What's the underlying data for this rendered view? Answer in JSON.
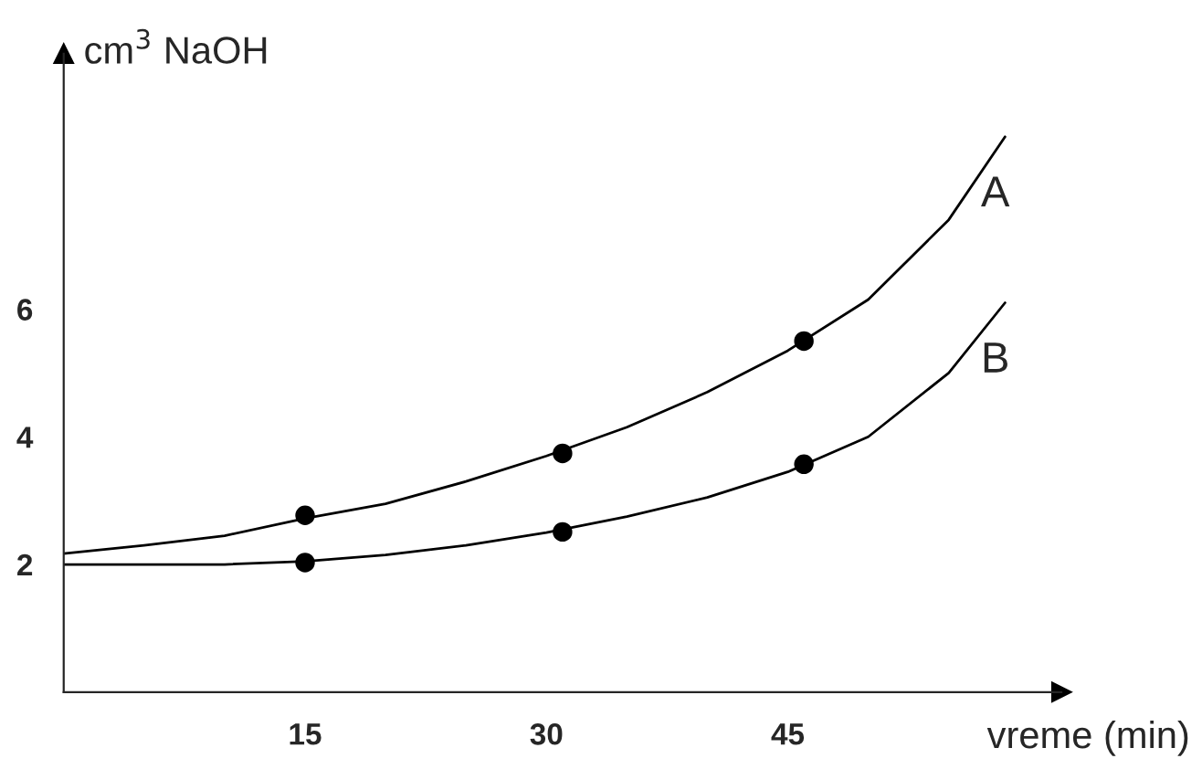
{
  "chart_data": {
    "type": "line",
    "ylabel": "cm$^{3}$ NaOH",
    "xlabel": "vreme (min)",
    "xlim": [
      0,
      62
    ],
    "ylim": [
      0,
      10
    ],
    "xticks": [
      15,
      30,
      45
    ],
    "yticks": [
      2,
      4,
      6
    ],
    "grid": false,
    "legend": false,
    "series": [
      {
        "name": "A",
        "color": "#000000",
        "marker": "none",
        "x": [
          0,
          5,
          10,
          15,
          20,
          25,
          30,
          35,
          40,
          45,
          50,
          55,
          58.5
        ],
        "values": [
          2.17,
          2.3,
          2.45,
          2.72,
          2.95,
          3.3,
          3.7,
          4.15,
          4.7,
          5.35,
          6.15,
          7.4,
          8.7
        ]
      },
      {
        "name": "B",
        "color": "#000000",
        "marker": "none",
        "x": [
          0,
          5,
          10,
          15,
          20,
          25,
          30,
          35,
          40,
          45,
          50,
          55,
          58.5
        ],
        "values": [
          2.0,
          2.0,
          2.0,
          2.05,
          2.15,
          2.3,
          2.5,
          2.75,
          3.05,
          3.45,
          4.0,
          5.0,
          6.1
        ]
      },
      {
        "type": "scatter",
        "color": "#000000",
        "marker": "circle",
        "x": [
          15,
          31,
          46
        ],
        "values": [
          2.77,
          3.74,
          5.5
        ]
      },
      {
        "type": "scatter",
        "color": "#000000",
        "marker": "circle",
        "x": [
          15,
          31,
          46
        ],
        "values": [
          2.03,
          2.51,
          3.57
        ]
      }
    ]
  }
}
